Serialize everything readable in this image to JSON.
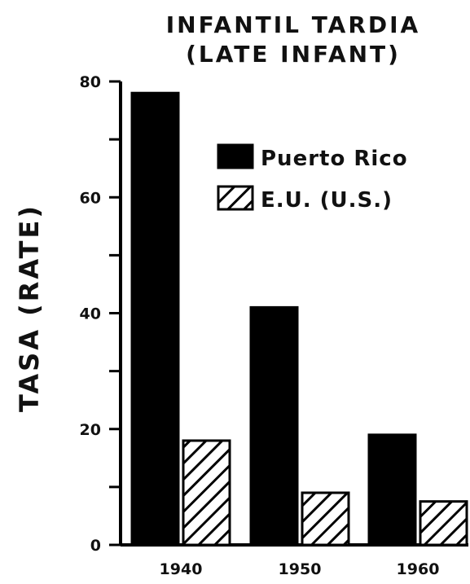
{
  "chart_data": {
    "type": "bar",
    "title": "INFANTIL TARDIA",
    "subtitle": "(LATE INFANT)",
    "ylabel": "TASA (RATE)",
    "xlabel": "",
    "categories": [
      "1940",
      "1950",
      "1960"
    ],
    "series": [
      {
        "name": "Puerto Rico",
        "values": [
          78,
          41,
          19
        ],
        "fill": "solid",
        "color": "#000000"
      },
      {
        "name": "E.U. (U.S.)",
        "values": [
          18,
          9,
          7.5
        ],
        "fill": "hatched",
        "color": "#000000"
      }
    ],
    "ylim": [
      0,
      80
    ],
    "yticks": [
      0,
      20,
      40,
      60,
      80
    ],
    "grid": false,
    "legend": "top-right"
  }
}
